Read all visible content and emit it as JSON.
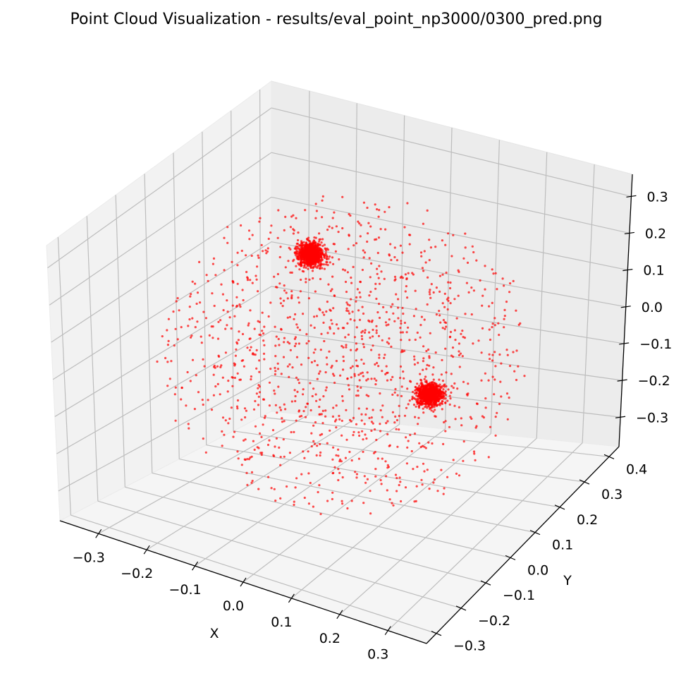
{
  "chart_data": {
    "type": "scatter",
    "projection": "3d",
    "title": "Point Cloud Visualization - results/eval_point_np3000/0300_pred.png",
    "xlabel": "X",
    "ylabel": "Y",
    "zlabel": "",
    "xlim": [
      -0.38,
      0.38
    ],
    "ylim": [
      -0.34,
      0.44
    ],
    "zlim": [
      -0.38,
      0.36
    ],
    "x_ticks": [
      "−0.3",
      "−0.2",
      "−0.1",
      "0.0",
      "0.1",
      "0.2",
      "0.3"
    ],
    "y_ticks": [
      "−0.3",
      "−0.2",
      "−0.1",
      "0.0",
      "0.1",
      "0.2",
      "0.3",
      "0.4"
    ],
    "z_ticks": [
      "−0.3",
      "−0.2",
      "−0.1",
      "0.0",
      "0.1",
      "0.2",
      "0.3"
    ],
    "grid": true,
    "marker_color": "#ff0000",
    "marker_alpha": 0.7,
    "series": [
      {
        "total_points": 3000,
        "clusters": [
          {
            "center": [
              -0.23,
              0.33,
              0.05
            ],
            "spread": 0.012,
            "count": 900
          },
          {
            "center": [
              0.24,
              -0.03,
              0.02
            ],
            "spread": 0.012,
            "count": 900
          }
        ],
        "scattered_count": 1200,
        "scattered_radius": 0.35
      }
    ]
  }
}
